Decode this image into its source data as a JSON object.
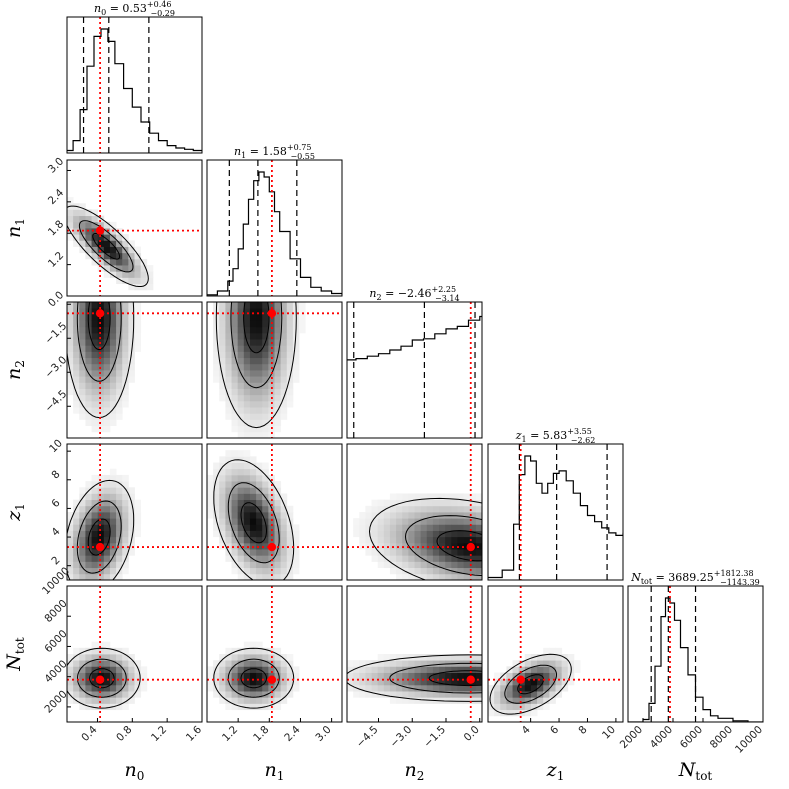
{
  "chart_data": {
    "type": "corner",
    "parameters": [
      {
        "key": "n0",
        "label_main": "n",
        "label_sub": "0",
        "range": [
          0.05,
          1.6
        ],
        "ticks": [
          "0.4",
          "0.8",
          "1.2",
          "1.6"
        ],
        "tick_values": [
          0.4,
          0.8,
          1.2,
          1.6
        ],
        "truth": 0.43
      },
      {
        "key": "n1",
        "label_main": "n",
        "label_sub": "1",
        "range": [
          0.6,
          3.2
        ],
        "ticks": [
          "1.2",
          "1.8",
          "2.4",
          "3.0"
        ],
        "tick_values": [
          1.2,
          1.8,
          2.4,
          3.0
        ],
        "truth": 1.85
      },
      {
        "key": "n2",
        "label_main": "n",
        "label_sub": "2",
        "range": [
          -5.9,
          0.1
        ],
        "ticks": [
          "−4.5",
          "−3.0",
          "−1.5",
          "0.0"
        ],
        "tick_values": [
          -4.5,
          -3.0,
          -1.5,
          0.0
        ],
        "truth": -0.4
      },
      {
        "key": "z1",
        "label_main": "z",
        "label_sub": "1",
        "range": [
          1.0,
          10.5
        ],
        "ticks": [
          "4",
          "6",
          "8",
          "10"
        ],
        "tick_values": [
          4,
          6,
          8,
          10
        ],
        "truth": 3.3
      },
      {
        "key": "Ntot",
        "label_main": "N",
        "label_sub": "tot",
        "range": [
          1000,
          10000
        ],
        "ticks": [
          "2000",
          "4000",
          "6000",
          "8000",
          "10000"
        ],
        "tick_values": [
          2000,
          4000,
          6000,
          8000,
          10000
        ],
        "truth": 3800
      }
    ],
    "row_ticks": [
      null,
      {
        "labels": [
          "1.2",
          "1.8",
          "2.4",
          "3.0"
        ],
        "values": [
          1.2,
          1.8,
          2.4,
          3.0
        ]
      },
      {
        "labels": [
          "−4.5",
          "−3.0",
          "−1.5",
          "0.0"
        ],
        "values": [
          -4.5,
          -3.0,
          -1.5,
          0.0
        ]
      },
      {
        "labels": [
          "2",
          "4",
          "6",
          "8",
          "10"
        ],
        "values": [
          2,
          4,
          6,
          8,
          10
        ]
      },
      {
        "labels": [
          "2000",
          "4000",
          "6000",
          "8000",
          "10000"
        ],
        "values": [
          2000,
          4000,
          6000,
          8000,
          10000
        ]
      }
    ],
    "titles": [
      {
        "lhs": "n",
        "lhs_sub": "0",
        "value": "0.53",
        "plus": "+0.46",
        "minus": "−0.29"
      },
      {
        "lhs": "n",
        "lhs_sub": "1",
        "value": "1.58",
        "plus": "+0.75",
        "minus": "−0.55"
      },
      {
        "lhs": "n",
        "lhs_sub": "2",
        "value": "−2.46",
        "plus": "+2.25",
        "minus": "−3.14"
      },
      {
        "lhs": "z",
        "lhs_sub": "1",
        "value": "5.83",
        "plus": "+3.55",
        "minus": "−2.62"
      },
      {
        "lhs": "N",
        "lhs_sub": "tot",
        "value": "3689.25",
        "plus": "+1812.38",
        "minus": "−1143.39"
      }
    ],
    "quantiles": [
      [
        0.24,
        0.53,
        0.99
      ],
      [
        1.03,
        1.58,
        2.33
      ],
      [
        -5.6,
        -2.46,
        -0.21
      ],
      [
        3.21,
        5.83,
        9.38
      ],
      [
        2546,
        3689,
        5502
      ]
    ],
    "marginals": {
      "n0": {
        "x": [
          0.05,
          0.12,
          0.2,
          0.28,
          0.36,
          0.44,
          0.52,
          0.6,
          0.7,
          0.8,
          0.9,
          1.0,
          1.1,
          1.2,
          1.3,
          1.4,
          1.5,
          1.6
        ],
        "y": [
          0.02,
          0.1,
          0.35,
          0.7,
          0.94,
          1.0,
          0.9,
          0.72,
          0.52,
          0.37,
          0.25,
          0.16,
          0.1,
          0.06,
          0.04,
          0.03,
          0.02,
          0.02
        ]
      },
      "n1": {
        "x": [
          0.6,
          0.8,
          1.0,
          1.1,
          1.2,
          1.3,
          1.4,
          1.5,
          1.6,
          1.7,
          1.8,
          1.9,
          2.0,
          2.2,
          2.4,
          2.6,
          2.8,
          3.0,
          3.2
        ],
        "y": [
          0.01,
          0.04,
          0.12,
          0.22,
          0.38,
          0.58,
          0.78,
          0.93,
          1.0,
          0.96,
          0.84,
          0.68,
          0.52,
          0.3,
          0.15,
          0.07,
          0.04,
          0.02,
          0.01
        ]
      },
      "n2": {
        "x": [
          -5.9,
          -5.5,
          -5.0,
          -4.5,
          -4.0,
          -3.5,
          -3.0,
          -2.5,
          -2.0,
          -1.5,
          -1.0,
          -0.5,
          0.0,
          0.1
        ],
        "y": [
          0.63,
          0.64,
          0.66,
          0.68,
          0.71,
          0.74,
          0.79,
          0.8,
          0.84,
          0.88,
          0.9,
          0.95,
          0.98,
          0.98
        ]
      },
      "z1": {
        "x": [
          1.0,
          2.0,
          2.8,
          3.2,
          3.6,
          4.0,
          4.4,
          4.8,
          5.2,
          5.6,
          6.0,
          6.5,
          7.0,
          7.5,
          8.0,
          8.5,
          9.0,
          9.5,
          10.0,
          10.5
        ],
        "y": [
          0.02,
          0.08,
          0.45,
          0.85,
          1.0,
          0.96,
          0.78,
          0.7,
          0.78,
          0.86,
          0.88,
          0.8,
          0.7,
          0.6,
          0.52,
          0.47,
          0.42,
          0.38,
          0.36,
          0.38
        ]
      },
      "Ntot": {
        "x": [
          1000,
          2000,
          2400,
          2800,
          3200,
          3500,
          3800,
          4100,
          4500,
          5000,
          5500,
          6000,
          6500,
          7000,
          8000,
          9000,
          10000
        ],
        "y": [
          0.0,
          0.02,
          0.15,
          0.45,
          0.85,
          1.0,
          0.96,
          0.82,
          0.6,
          0.38,
          0.2,
          0.1,
          0.05,
          0.03,
          0.01,
          0.0,
          0.0
        ]
      }
    },
    "joint_peaks": {
      "n0_n1": {
        "cx": 0.5,
        "cy": 1.55,
        "sx": 0.22,
        "sy": 0.35,
        "rho": -0.8
      },
      "n0_n2": {
        "cx": 0.42,
        "cy": -0.6,
        "sx": 0.18,
        "sy": 2.0,
        "rho": 0.0
      },
      "n1_n2": {
        "cx": 1.55,
        "cy": -0.6,
        "sx": 0.35,
        "sy": 2.2,
        "rho": 0.0
      },
      "n0_z1": {
        "cx": 0.42,
        "cy": 4.0,
        "sx": 0.18,
        "sy": 1.8,
        "rho": 0.3
      },
      "n1_z1": {
        "cx": 1.5,
        "cy": 5.0,
        "sx": 0.35,
        "sy": 2.0,
        "rho": -0.4
      },
      "n2_z1": {
        "cx": -0.5,
        "cy": 3.4,
        "sx": 2.0,
        "sy": 1.5,
        "rho": -0.3
      },
      "n0_Ntot": {
        "cx": 0.45,
        "cy": 3900,
        "sx": 0.2,
        "sy": 900,
        "rho": 0.0
      },
      "n1_Ntot": {
        "cx": 1.5,
        "cy": 3900,
        "sx": 0.35,
        "sy": 900,
        "rho": 0.0
      },
      "n2_Ntot": {
        "cx": -0.5,
        "cy": 3900,
        "sx": 2.5,
        "sy": 700,
        "rho": 0.0
      },
      "z1_Ntot": {
        "cx": 4.0,
        "cy": 3500,
        "sx": 1.3,
        "sy": 900,
        "rho": 0.5
      }
    },
    "truth_color": "#ff0000",
    "contour_color": "#000000",
    "quantile_linestyle": "dashed"
  }
}
